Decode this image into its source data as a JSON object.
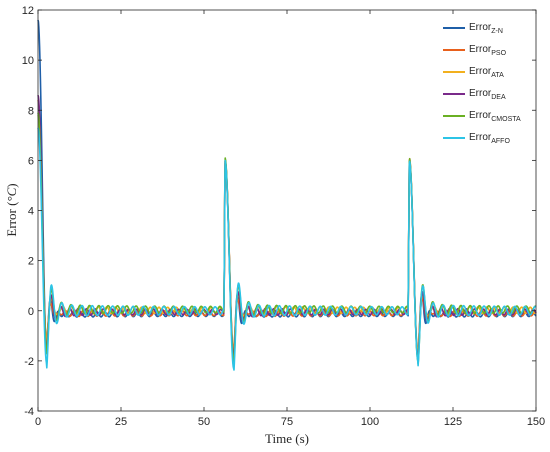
{
  "chart_data": {
    "type": "line",
    "xlabel": "Time (s)",
    "ylabel_main": "Error (",
    "ylabel_unit": "°C",
    "ylabel_close": ")",
    "xlim": [
      0,
      150
    ],
    "ylim": [
      -4,
      12
    ],
    "xticks": [
      0,
      25,
      50,
      75,
      100,
      125,
      150
    ],
    "yticks": [
      -4,
      -2,
      0,
      2,
      4,
      6,
      8,
      10,
      12
    ],
    "grid": false,
    "legend_position": "top-right",
    "disturbance_times": [
      0,
      56,
      111.5
    ],
    "series": [
      {
        "prefix": "Error",
        "sub": "Z-N",
        "color": "#1f5fa8",
        "peaks": [
          11.6,
          5.9,
          6.0
        ],
        "undershoot": [
          -1.5,
          -1.9,
          -1.9
        ],
        "settle_offset": -0.15,
        "osc_amp": 0.12,
        "osc_period": 2.6
      },
      {
        "prefix": "Error",
        "sub": "PSO",
        "color": "#e8601c",
        "peaks": [
          8.4,
          6.0,
          6.1
        ],
        "undershoot": [
          -1.3,
          -1.7,
          -1.8
        ],
        "settle_offset": -0.1,
        "osc_amp": 0.15,
        "osc_period": 2.9
      },
      {
        "prefix": "Error",
        "sub": "ATA",
        "color": "#f2b01e",
        "peaks": [
          7.8,
          6.0,
          6.0
        ],
        "undershoot": [
          -1.4,
          -1.8,
          -1.8
        ],
        "settle_offset": 0.02,
        "osc_amp": 0.18,
        "osc_period": 2.8
      },
      {
        "prefix": "Error",
        "sub": "DEA",
        "color": "#7a2a8a",
        "peaks": [
          8.6,
          6.0,
          6.0
        ],
        "undershoot": [
          -1.6,
          -1.9,
          -1.9
        ],
        "settle_offset": -0.05,
        "osc_amp": 0.16,
        "osc_period": 2.7
      },
      {
        "prefix": "Error",
        "sub": "CMOSTA",
        "color": "#6ab023",
        "peaks": [
          7.9,
          6.1,
          6.1
        ],
        "undershoot": [
          -1.6,
          -2.0,
          -2.0
        ],
        "settle_offset": 0.05,
        "osc_amp": 0.2,
        "osc_period": 3.0
      },
      {
        "prefix": "Error",
        "sub": "AFFO",
        "color": "#2cc4e6",
        "peaks": [
          7.3,
          6.0,
          6.0
        ],
        "undershoot": [
          -2.1,
          -2.3,
          -2.0
        ],
        "settle_offset": 0.0,
        "osc_amp": 0.25,
        "osc_period": 3.3
      }
    ]
  }
}
